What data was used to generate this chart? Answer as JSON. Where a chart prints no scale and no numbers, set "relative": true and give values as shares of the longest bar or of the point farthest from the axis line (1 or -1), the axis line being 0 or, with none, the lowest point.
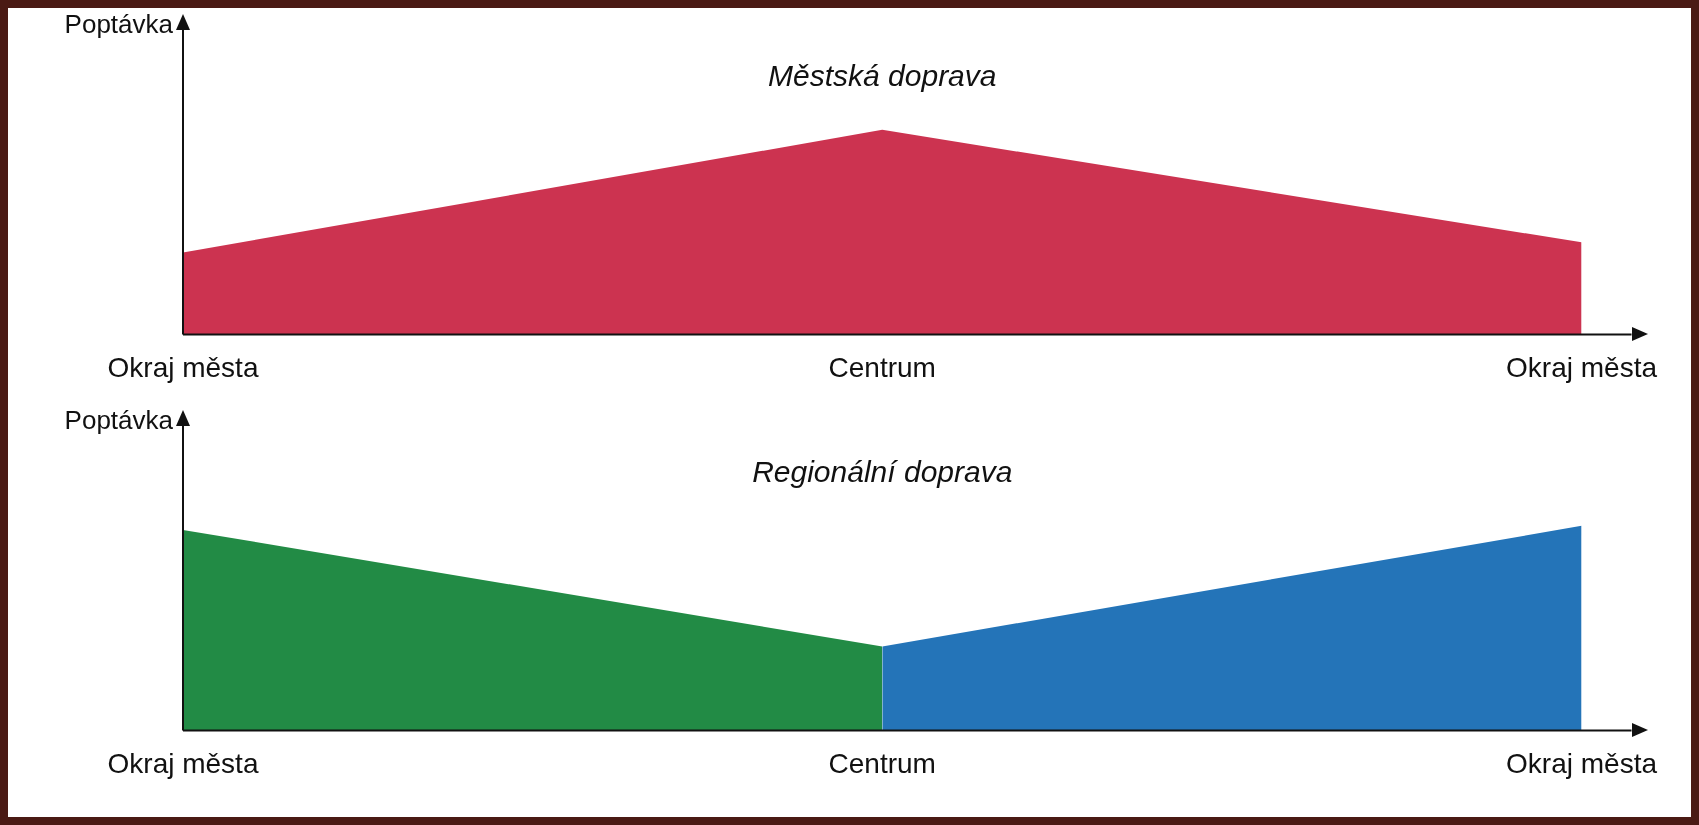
{
  "chart_data": [
    {
      "type": "area",
      "title": "Městská doprava",
      "ylabel": "Poptávka",
      "categories": [
        "Okraj města",
        "Centrum",
        "Okraj města"
      ],
      "relative": true,
      "series": [
        {
          "color": "#cc3350",
          "values": [
            0.4,
            1,
            0.45
          ]
        }
      ]
    },
    {
      "type": "area",
      "title": "Regionální doprava",
      "ylabel": "Poptávka",
      "categories": [
        "Okraj města",
        "Centrum",
        "Okraj města"
      ],
      "relative": true,
      "series": [
        {
          "color": "#228b45",
          "values": [
            0.98,
            0.41,
            null
          ]
        },
        {
          "color": "#2474b8",
          "values": [
            null,
            0.41,
            1
          ]
        }
      ]
    }
  ]
}
